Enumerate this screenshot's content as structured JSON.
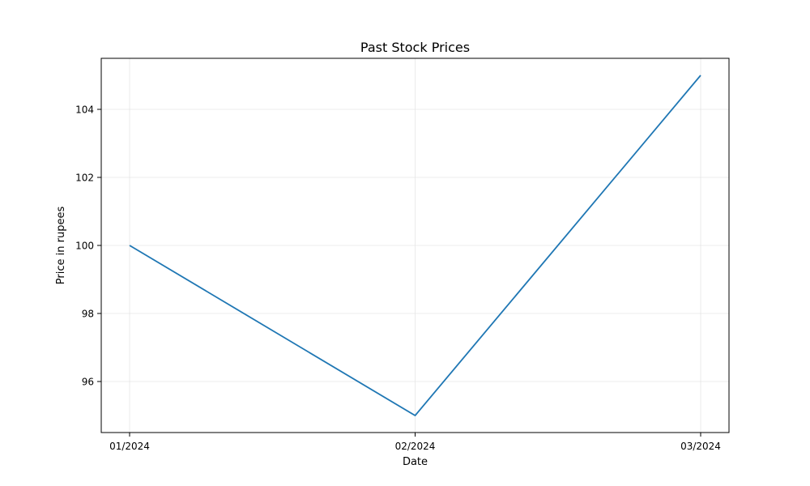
{
  "chart_data": {
    "type": "line",
    "title": "Past Stock Prices",
    "xlabel": "Date",
    "ylabel": "Price in rupees",
    "categories": [
      "01/2024",
      "02/2024",
      "03/2024"
    ],
    "series": [
      {
        "values": [
          100,
          95,
          105
        ],
        "color": "#1f77b4"
      }
    ],
    "ylim": [
      94.5,
      105.5
    ],
    "yticks": [
      96,
      98,
      100,
      102,
      104
    ],
    "grid": true
  }
}
